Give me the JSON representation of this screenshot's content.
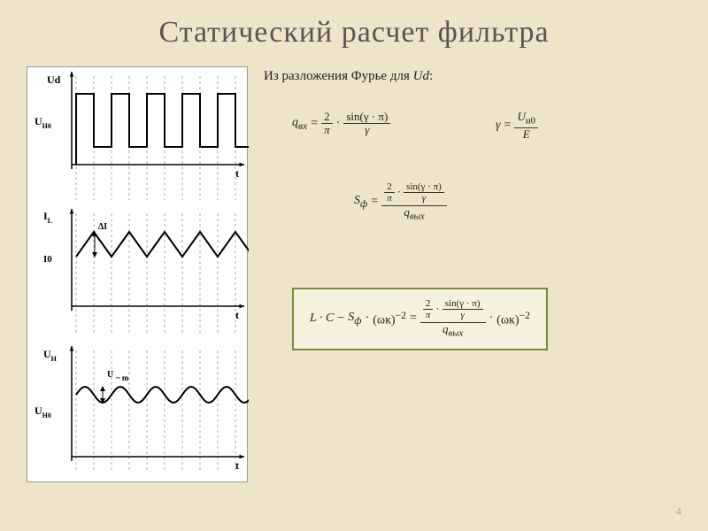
{
  "title": "Статический расчет фильтра",
  "subtitle_prefix": "Из разложения Фурье для ",
  "subtitle_var": "Ud",
  "subtitle_suffix": ":",
  "page_number": "4",
  "equations": {
    "q_in": {
      "lhs": "q",
      "lhs_sub": "вх",
      "eq": "=",
      "two": "2",
      "pi": "π",
      "dot": "·",
      "sin": "sin(γ · π)",
      "gamma": "γ"
    },
    "gamma": {
      "lhs": "γ",
      "eq": "=",
      "num": "U",
      "num_sub": "н0",
      "den": "E"
    },
    "s_phi": {
      "lhs": "S",
      "lhs_sub": "ф",
      "eq": "=",
      "two": "2",
      "pi": "π",
      "dot": "·",
      "sin": "sin(γ · π)",
      "gamma": "γ",
      "q": "q",
      "q_sub": "вых"
    },
    "lc": {
      "l": "L · C",
      "minus": "−",
      "s": "S",
      "s_sub": "ф",
      "dot": "·",
      "omega": "(ωк)",
      "exp": "−2",
      "eq": "=",
      "two": "2",
      "pi": "π",
      "sin": "sin(γ · π)",
      "gamma": "γ",
      "q": "q",
      "q_sub": "вых"
    }
  },
  "graphs": {
    "labels": {
      "ud": "Ud",
      "uh0_top": "U",
      "uh0_sub": "Н0",
      "t": "t",
      "il": "I",
      "il_sub": "L",
      "di": "ΔI",
      "i0": "I0",
      "uh": "U",
      "uh_sub": "Н",
      "um": "U",
      "um_tilde": "~ m"
    },
    "config": {
      "stroke": "#000000",
      "dash_stroke": "#888888",
      "bg": "#ffffff",
      "square_high": 30,
      "square_low": 90,
      "square_period": 40,
      "square_start": 55,
      "square_count": 5,
      "tri_mid": 60,
      "tri_amp": 14,
      "tri_period": 40,
      "tri_start": 55,
      "tri_count": 5,
      "sine_mid": 55,
      "sine_amp": 9,
      "sine_period": 40,
      "sine_start": 55,
      "sine_count": 5
    }
  }
}
